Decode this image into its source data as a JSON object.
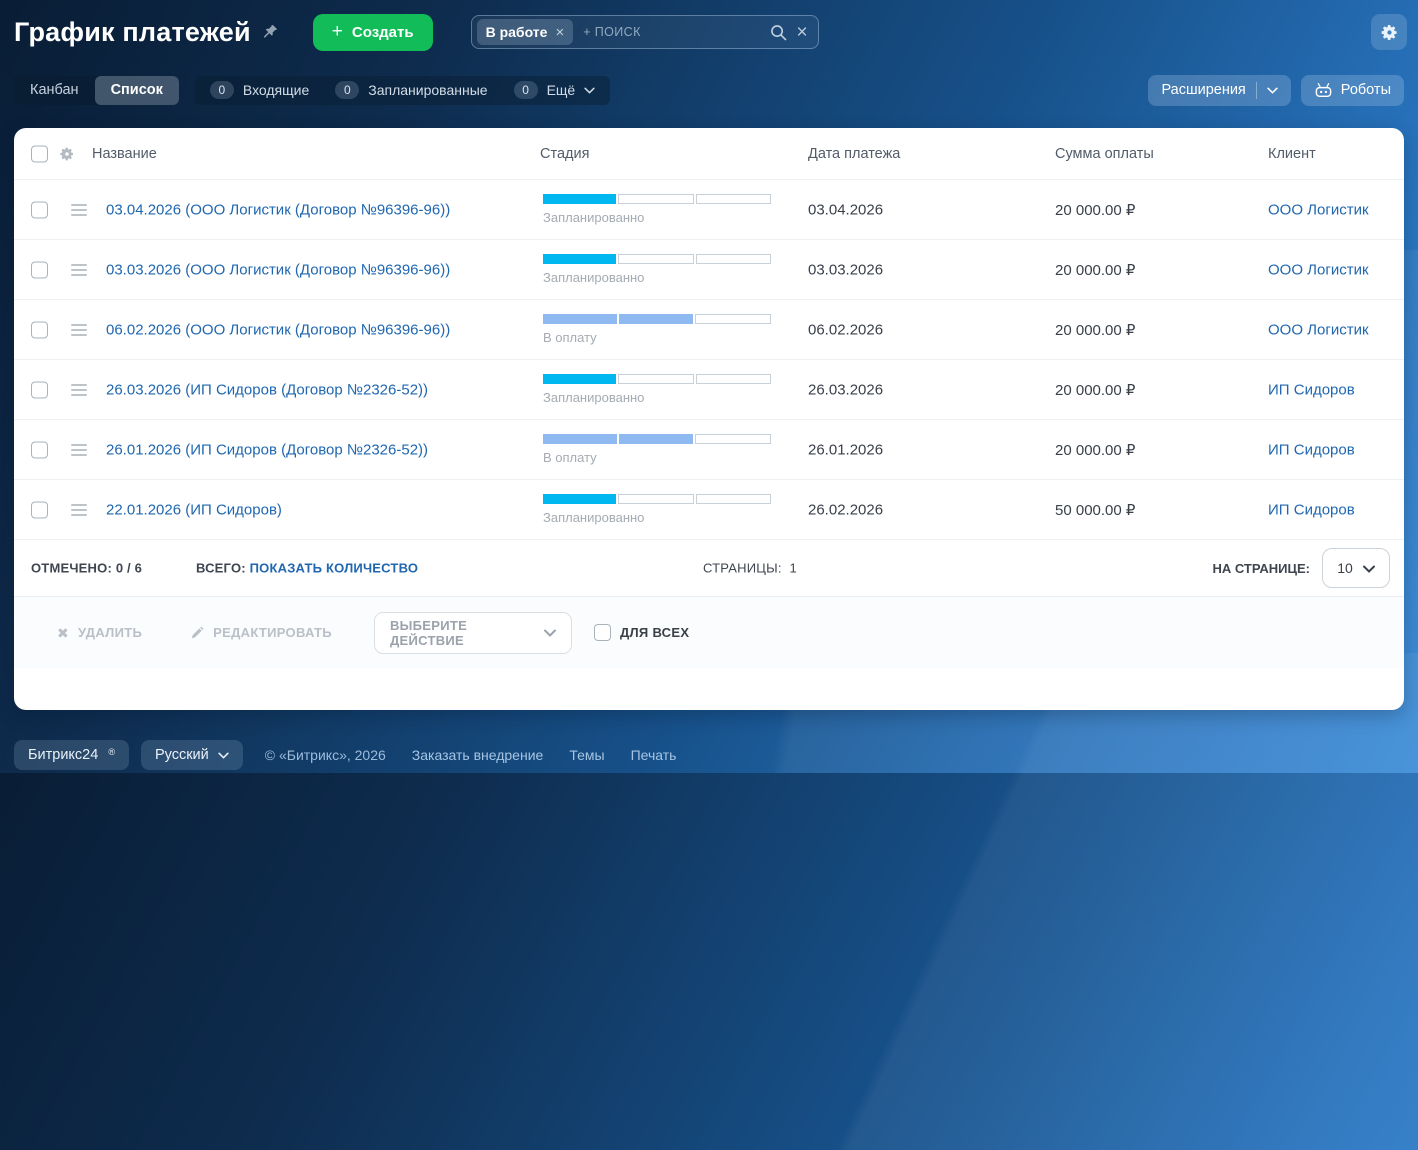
{
  "page": {
    "title": "График платежей",
    "create_label": "Создать",
    "search": {
      "chip": "В работе",
      "placeholder": "+ поиск"
    }
  },
  "toolbar": {
    "view_tabs": [
      {
        "label": "Канбан",
        "active": false
      },
      {
        "label": "Список",
        "active": true
      }
    ],
    "counters": [
      {
        "count": "0",
        "label": "Входящие"
      },
      {
        "count": "0",
        "label": "Запланированные"
      },
      {
        "count": "0",
        "label": "Ещё"
      }
    ],
    "extensions_label": "Расширения",
    "robots_label": "Роботы"
  },
  "table": {
    "columns": [
      "Название",
      "Стадия",
      "Дата платежа",
      "Сумма оплаты",
      "Клиент"
    ],
    "stage_segments": 3,
    "stage_colors": {
      "Запланированно": "#00b8f0",
      "В оплату": "#8fb9f1"
    },
    "rows": [
      {
        "name": "03.04.2026 (ООО Логистик (Договор №96396-96))",
        "stage": "Запланированно",
        "stage_filled": 1,
        "date": "03.04.2026",
        "amount": "20 000.00 ₽",
        "client": "ООО Логистик"
      },
      {
        "name": "03.03.2026 (ООО Логистик (Договор №96396-96))",
        "stage": "Запланированно",
        "stage_filled": 1,
        "date": "03.03.2026",
        "amount": "20 000.00 ₽",
        "client": "ООО Логистик"
      },
      {
        "name": "06.02.2026 (ООО Логистик (Договор №96396-96))",
        "stage": "В оплату",
        "stage_filled": 2,
        "date": "06.02.2026",
        "amount": "20 000.00 ₽",
        "client": "ООО Логистик"
      },
      {
        "name": "26.03.2026 (ИП Сидоров (Договор №2326-52))",
        "stage": "Запланированно",
        "stage_filled": 1,
        "date": "26.03.2026",
        "amount": "20 000.00 ₽",
        "client": "ИП Сидоров"
      },
      {
        "name": "26.01.2026 (ИП Сидоров (Договор №2326-52))",
        "stage": "В оплату",
        "stage_filled": 2,
        "date": "26.01.2026",
        "amount": "20 000.00 ₽",
        "client": "ИП Сидоров"
      },
      {
        "name": "22.01.2026 (ИП Сидоров)",
        "stage": "Запланированно",
        "stage_filled": 1,
        "date": "26.02.2026",
        "amount": "50 000.00 ₽",
        "client": "ИП Сидоров"
      }
    ],
    "footer": {
      "selected_label": "ОТМЕЧЕНО:",
      "selected_value": "0 / 6",
      "total_label": "ВСЕГО:",
      "total_link": "ПОКАЗАТЬ КОЛИЧЕСТВО",
      "pages_label": "СТРАНИЦЫ:",
      "pages_value": "1",
      "per_page_label": "НА СТРАНИЦЕ:",
      "per_page_value": "10"
    },
    "actions": {
      "delete": "УДАЛИТЬ",
      "edit": "РЕДАКТИРОВАТЬ",
      "select_action": "ВЫБЕРИТЕ ДЕЙСТВИЕ",
      "for_all": "ДЛЯ ВСЕХ"
    }
  },
  "footer": {
    "brand": "Битрикс24",
    "brand_mark": "®",
    "language": "Русский",
    "copyright": "© «Битрикс», 2026",
    "links": [
      "Заказать внедрение",
      "Темы",
      "Печать"
    ]
  },
  "colors": {
    "accent_green": "#12bd59",
    "link_blue": "#2067b0",
    "stage_planned": "#00b8f0",
    "stage_payment": "#8fb9f1"
  }
}
